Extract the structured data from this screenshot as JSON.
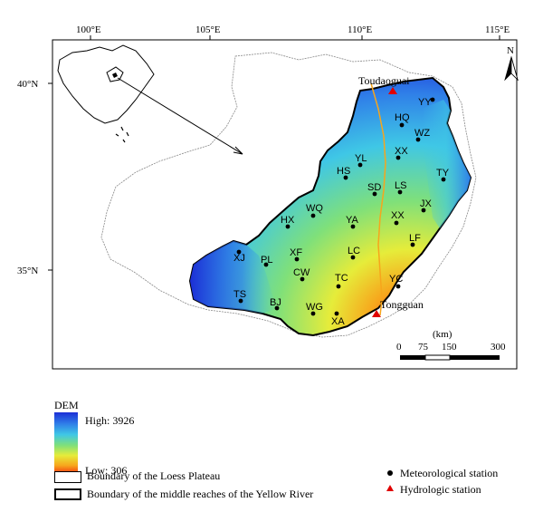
{
  "lon_ticks": [
    "100°E",
    "105°E",
    "110°E",
    "115°E"
  ],
  "lat_ticks": [
    "40°N",
    "35°N"
  ],
  "north_label": "N",
  "scale": {
    "unit": "(km)",
    "labels": [
      "0",
      "75",
      "150",
      "300"
    ]
  },
  "places": {
    "toudaoguai": "Toudaoguai",
    "tongguan": "Tongguan"
  },
  "stations": [
    "YY",
    "HQ",
    "WZ",
    "XX",
    "YL",
    "HS",
    "TY",
    "SD",
    "LS",
    "JX",
    "WQ",
    "HX",
    "YA",
    "XX",
    "LF",
    "XF",
    "LC",
    "XJ",
    "PL",
    "CW",
    "TC",
    "YC",
    "TS",
    "BJ",
    "WG",
    "XA"
  ],
  "legend": {
    "dem_title": "DEM",
    "dem_high": "High: 3926",
    "dem_low": "Low: 306",
    "loess_boundary": "Boundary of the Loess Plateau",
    "middle_reaches_boundary": "Boundary of the middle reaches of the Yellow River",
    "met_station": "Meteorological station",
    "hydro_station": "Hydrologic station"
  },
  "colors": {
    "dem_high": "#1c2fd6",
    "dem_mid": "#e6ec3a",
    "dem_low": "#f21a0e",
    "hydro": "#e00000",
    "met": "#000000"
  }
}
